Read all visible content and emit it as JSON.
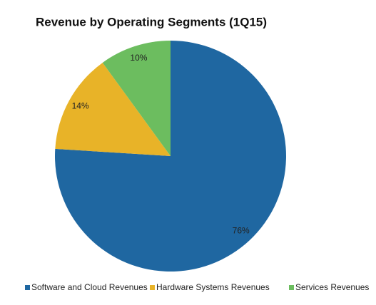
{
  "chart_data": {
    "type": "pie",
    "title": "Revenue by Operating Segments (1Q15)",
    "categories": [
      "Software and Cloud Revenues",
      "Hardware Systems  Revenues",
      "Services Revenues"
    ],
    "values": [
      76,
      14,
      10
    ],
    "value_labels": [
      "76%",
      "14%",
      "10%"
    ],
    "colors": [
      "#1f67a1",
      "#e8b328",
      "#6cbd5f"
    ],
    "legend": "bottom"
  }
}
